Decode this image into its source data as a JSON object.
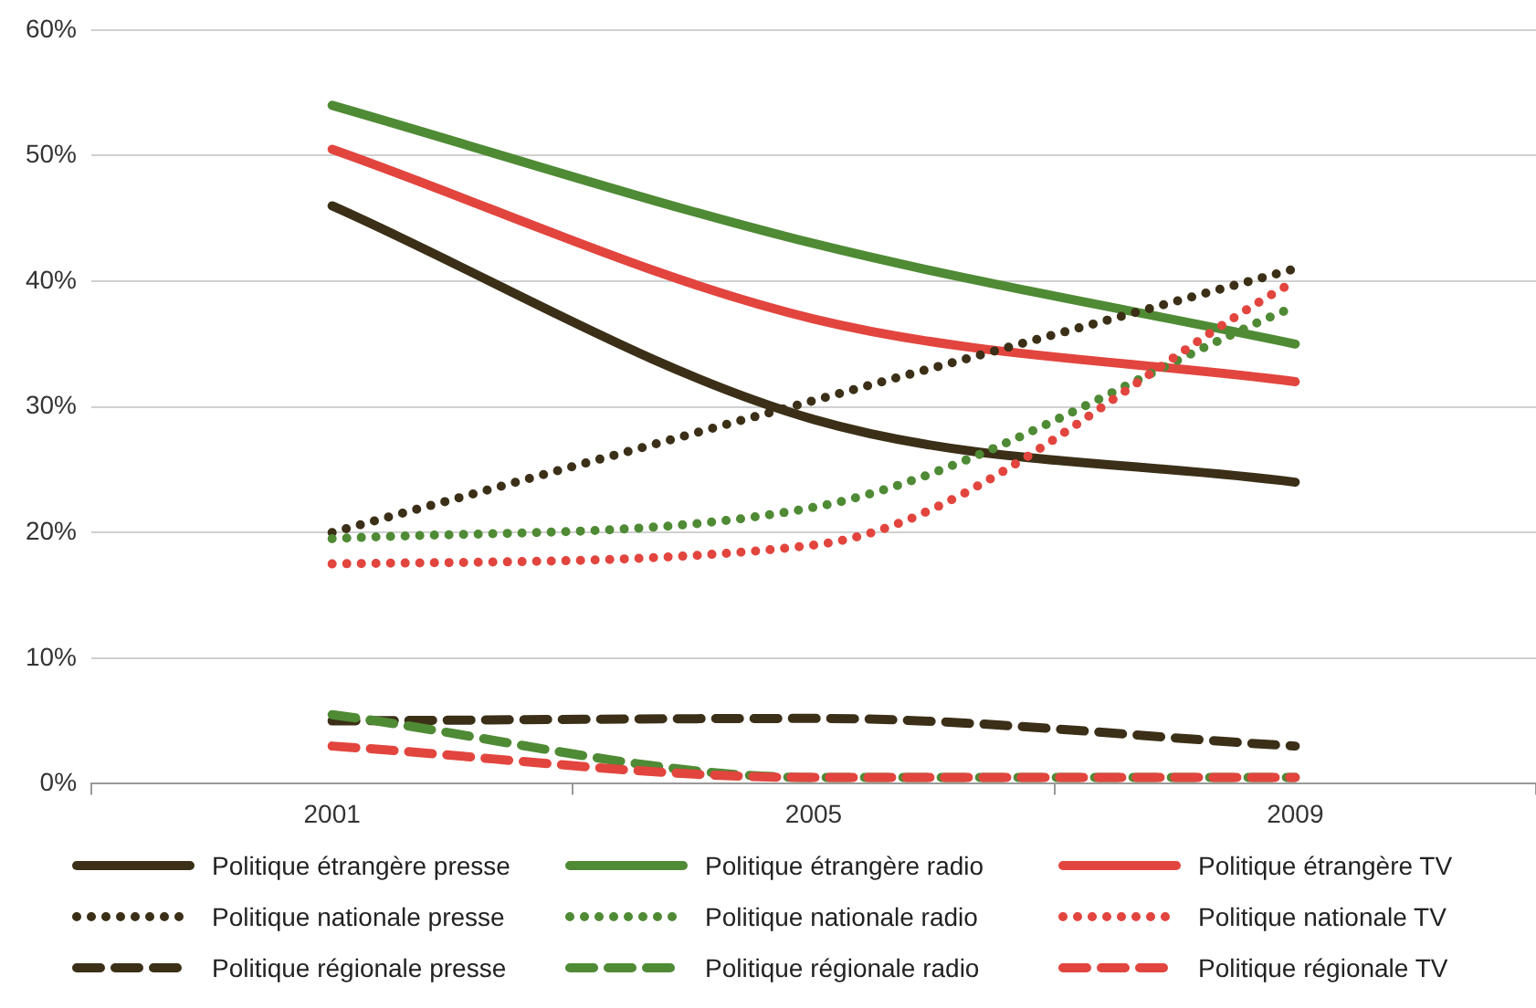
{
  "chart_data": {
    "type": "line",
    "categories": [
      "2001",
      "2005",
      "2009"
    ],
    "series": [
      {
        "name": "Politique étrangère presse",
        "color": "#3b2f17",
        "values": [
          46,
          29,
          24
        ],
        "line_style": "solid"
      },
      {
        "name": "Politique étrangère radio",
        "color": "#4f8a35",
        "values": [
          54,
          43,
          35
        ],
        "line_style": "solid"
      },
      {
        "name": "Politique étrangère TV",
        "color": "#e2453e",
        "values": [
          50.5,
          37,
          32
        ],
        "line_style": "solid"
      },
      {
        "name": "Politique nationale presse",
        "color": "#3b2f17",
        "values": [
          20,
          30.5,
          41
        ],
        "line_style": "dotted"
      },
      {
        "name": "Politique nationale radio",
        "color": "#4f8a35",
        "values": [
          19.5,
          22,
          38
        ],
        "line_style": "dotted"
      },
      {
        "name": "Politique nationale TV",
        "color": "#e2453e",
        "values": [
          17.5,
          19,
          40
        ],
        "line_style": "dotted"
      },
      {
        "name": "Politique régionale presse",
        "color": "#3b2f17",
        "values": [
          5,
          5.2,
          3
        ],
        "line_style": "dashed"
      },
      {
        "name": "Politique régionale radio",
        "color": "#4f8a35",
        "values": [
          5.5,
          0.5,
          0.5
        ],
        "line_style": "dashed"
      },
      {
        "name": "Politique régionale TV",
        "color": "#e2453e",
        "values": [
          3,
          0.5,
          0.5
        ],
        "line_style": "dashed"
      }
    ],
    "ylim": [
      0,
      60
    ],
    "yticks": [
      {
        "value": 0,
        "label": "0%"
      },
      {
        "value": 10,
        "label": "10%"
      },
      {
        "value": 20,
        "label": "20%"
      },
      {
        "value": 30,
        "label": "30%"
      },
      {
        "value": 40,
        "label": "40%"
      },
      {
        "value": 50,
        "label": "50%"
      },
      {
        "value": 60,
        "label": "60%"
      }
    ],
    "grid": "y",
    "legend": "bottom",
    "marker": "none"
  }
}
